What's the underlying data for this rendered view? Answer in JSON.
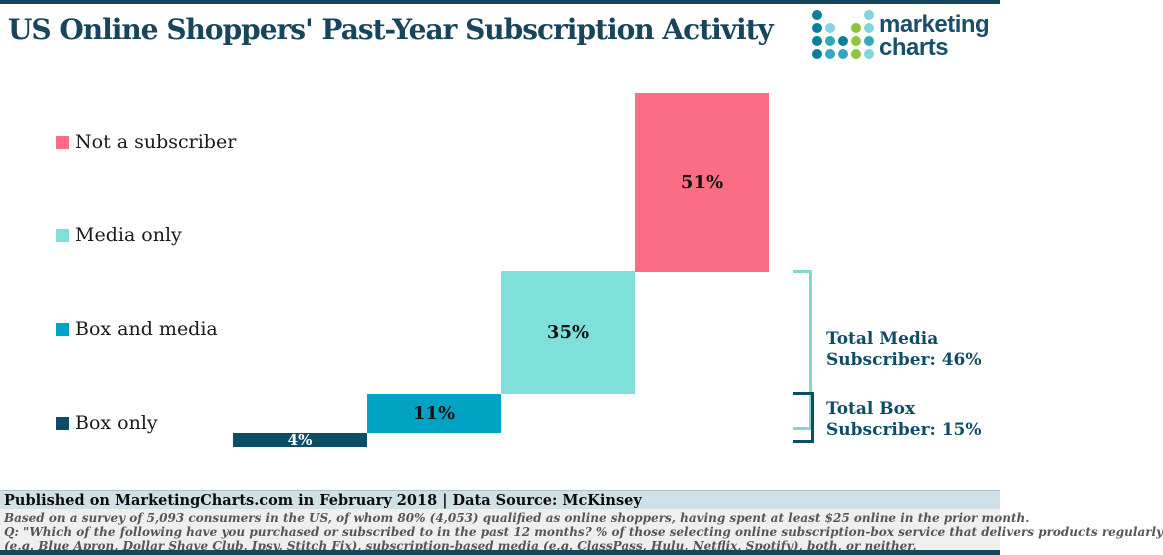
{
  "header": {
    "title": "US Online Shoppers' Past-Year Subscription Activity",
    "logo": {
      "word1": "marketing",
      "word2": "charts",
      "text_color": "#17506B",
      "dot_colors": {
        "dark": "#0B7E9B",
        "teal": "#35A7BC",
        "light": "#82D4DE",
        "green": "#8CC63F"
      },
      "dot_grid": [
        [
          "dark",
          null,
          null,
          null,
          "light"
        ],
        [
          "dark",
          "light",
          null,
          "green",
          "light"
        ],
        [
          "dark",
          "teal",
          "dark",
          "green",
          "teal"
        ],
        [
          "dark",
          "teal",
          "teal",
          "green",
          "light"
        ]
      ]
    }
  },
  "legend": [
    {
      "label": "Not a subscriber",
      "color": "#FB6D84"
    },
    {
      "label": "Media only",
      "color": "#7FDFDA"
    },
    {
      "label": "Box and media",
      "color": "#00A3C4"
    },
    {
      "label": "Box only",
      "color": "#0D4D66"
    }
  ],
  "chart_data": {
    "type": "bar",
    "subtype": "waterfall",
    "title": "US Online Shoppers' Past-Year Subscription Activity",
    "unit": "%",
    "categories": [
      "Box only",
      "Box and media",
      "Media only",
      "Not a subscriber"
    ],
    "values": [
      4,
      11,
      35,
      51
    ],
    "data_labels": [
      "4%",
      "11%",
      "35%",
      "51%"
    ],
    "colors": [
      "#0D4D66",
      "#00A3C4",
      "#7FDFDA",
      "#FB6D84"
    ],
    "label_colors": [
      "#FFFFFF",
      "#111111",
      "#111111",
      "#111111"
    ],
    "legend_position": "left",
    "grid": false,
    "annotations": [
      {
        "label": "Total Media Subscriber",
        "value": 46,
        "covers": [
          "Media only",
          "Box and media"
        ],
        "bracket_color": "#7FD8D4"
      },
      {
        "label": "Total Box Subscriber",
        "value": 15,
        "covers": [
          "Box and media",
          "Box only"
        ],
        "bracket_color": "#0D4D66"
      }
    ]
  },
  "totals": {
    "media": {
      "line1": "Total Media",
      "line2": "Subscriber: 46%"
    },
    "box": {
      "line1": "Total Box",
      "line2": "Subscriber: 15%"
    }
  },
  "footer": {
    "published": "Published on MarketingCharts.com in February 2018 | Data Source: McKinsey",
    "notes": [
      "Based on a survey of 5,093 consumers in the US, of whom 80% (4,053) qualified as online shoppers, having spent at least $25 online in the prior month.",
      "Q: \"Which of the following have you purchased or subscribed to in the past 12 months? % of those selecting online subscription-box service that delivers products regularly",
      "(e.g. Blue Apron, Dollar Shave Club, Ipsy, Stitch Fix), subscription-based media (e.g. ClassPass, Hulu, Netflix, Spotify), both, or neither."
    ]
  }
}
